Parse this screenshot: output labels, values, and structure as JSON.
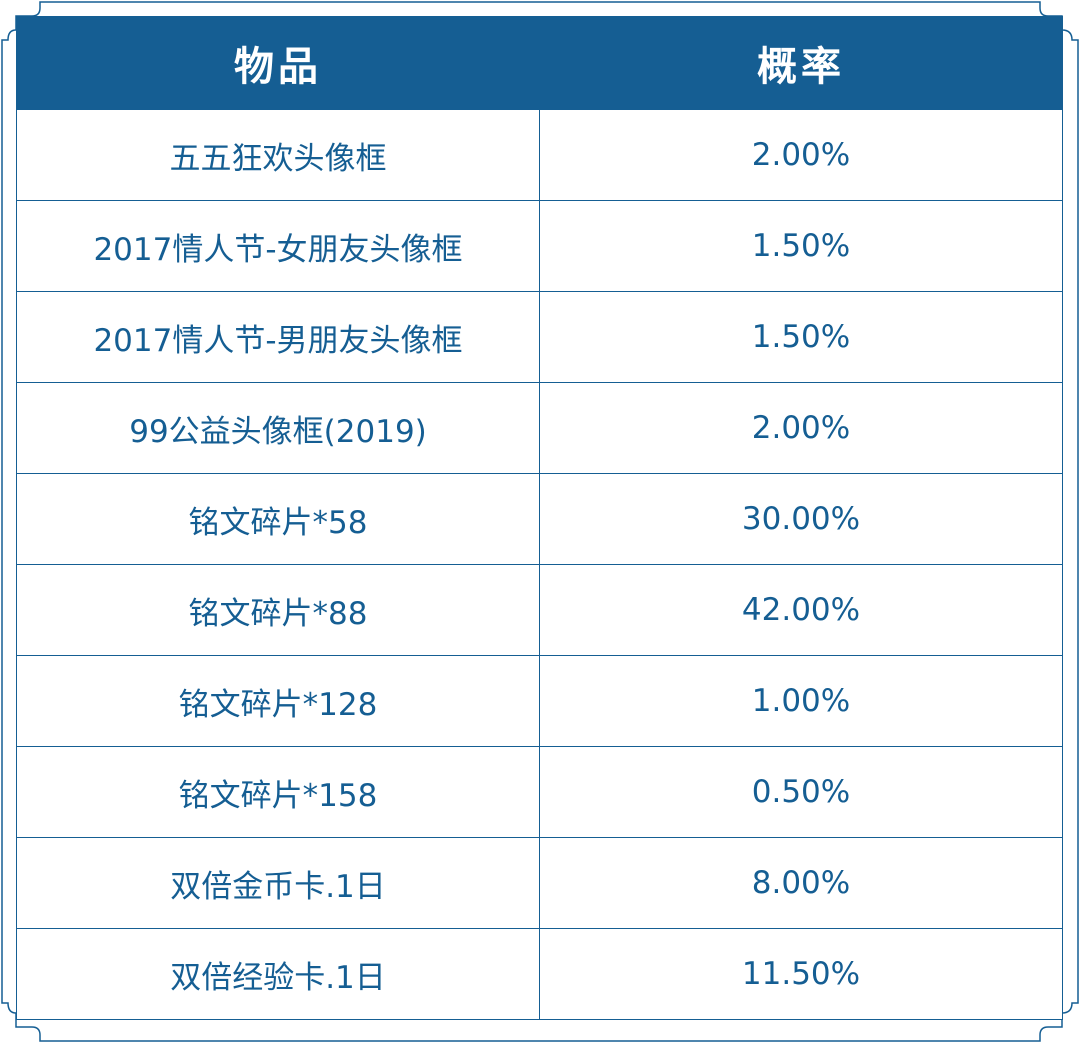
{
  "colors": {
    "accent": "#155e93",
    "header_text": "#ffffff",
    "body_text": "#155e93",
    "background": "#ffffff"
  },
  "table": {
    "headers": {
      "item": "物品",
      "probability": "概率"
    },
    "rows": [
      {
        "item": "五五狂欢头像框",
        "probability": "2.00%"
      },
      {
        "item": "2017情人节-女朋友头像框",
        "probability": "1.50%"
      },
      {
        "item": "2017情人节-男朋友头像框",
        "probability": "1.50%"
      },
      {
        "item": "99公益头像框(2019)",
        "probability": "2.00%"
      },
      {
        "item": "铭文碎片*58",
        "probability": "30.00%"
      },
      {
        "item": "铭文碎片*88",
        "probability": "42.00%"
      },
      {
        "item": "铭文碎片*128",
        "probability": "1.00%"
      },
      {
        "item": "铭文碎片*158",
        "probability": "0.50%"
      },
      {
        "item": "双倍金币卡.1日",
        "probability": "8.00%"
      },
      {
        "item": "双倍经验卡.1日",
        "probability": "11.50%"
      }
    ]
  }
}
